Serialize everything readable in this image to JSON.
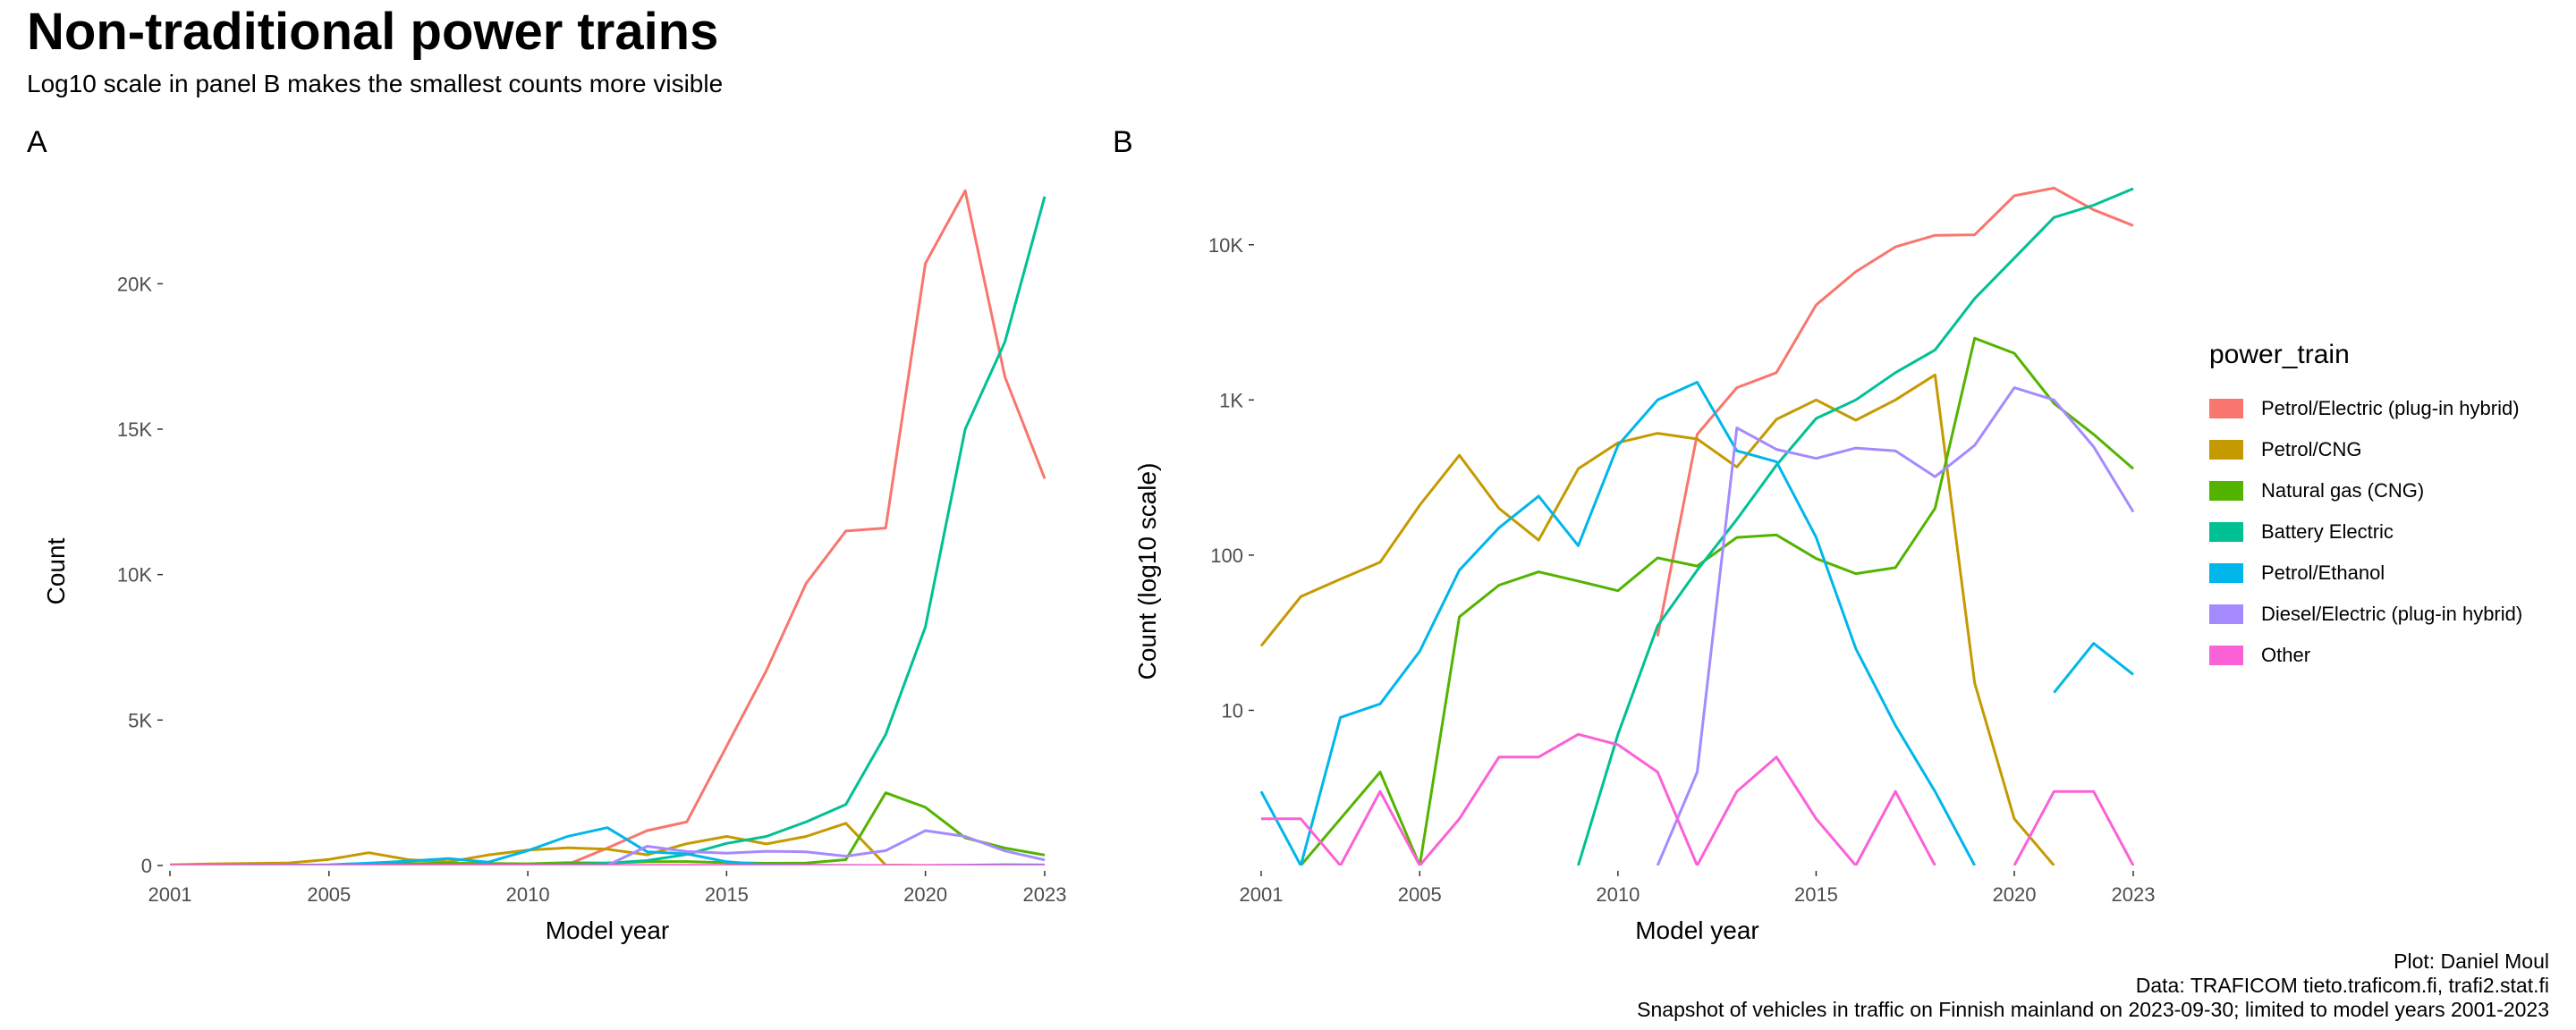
{
  "title": "Non-traditional power trains",
  "subtitle": "Log10 scale in panel B makes the smallest counts more visible",
  "legend": {
    "title": "power_train",
    "items": [
      {
        "label": "Petrol/Electric (plug-in hybrid)",
        "color": "#F8766D"
      },
      {
        "label": "Petrol/CNG",
        "color": "#C49A00"
      },
      {
        "label": "Natural gas (CNG)",
        "color": "#53B400"
      },
      {
        "label": "Battery Electric",
        "color": "#00C094"
      },
      {
        "label": "Petrol/Ethanol",
        "color": "#00B6EB"
      },
      {
        "label": "Diesel/Electric (plug-in hybrid)",
        "color": "#A58AFF"
      },
      {
        "label": "Other",
        "color": "#FB61D7"
      }
    ]
  },
  "caption": {
    "line1": "Plot: Daniel Moul",
    "line2": "Data: TRAFICOM tieto.traficom.fi, trafi2.stat.fi",
    "line3": "Snapshot of vehicles in traffic on Finnish mainland on 2023-09-30; limited to model years 2001-2023"
  },
  "chart_data": [
    {
      "panel": "A",
      "type": "line",
      "xlabel": "Model year",
      "ylabel": "Count",
      "xlim": [
        2001,
        2023
      ],
      "ylim": [
        0,
        23300
      ],
      "x_ticks": [
        2001,
        2005,
        2010,
        2015,
        2020,
        2023
      ],
      "y_ticks": [
        0,
        5000,
        10000,
        15000,
        20000
      ],
      "y_tick_labels": [
        "0",
        "5K",
        "10K",
        "15K",
        "20K"
      ],
      "scale": "linear",
      "grid": false,
      "legend_position": "right"
    },
    {
      "panel": "B",
      "type": "line",
      "xlabel": "Model year",
      "ylabel": "Count (log10 scale)",
      "xlim": [
        2001,
        2023
      ],
      "ylim": [
        1,
        23300
      ],
      "x_ticks": [
        2001,
        2005,
        2010,
        2015,
        2020,
        2023
      ],
      "y_ticks": [
        10,
        100,
        1000,
        10000
      ],
      "y_tick_labels": [
        "10",
        "100",
        "1K",
        "10K"
      ],
      "scale": "log10",
      "grid": false,
      "legend_position": "right"
    }
  ],
  "series": {
    "x": [
      2001,
      2002,
      2003,
      2004,
      2005,
      2006,
      2007,
      2008,
      2009,
      2010,
      2011,
      2012,
      2013,
      2014,
      2015,
      2016,
      2017,
      2018,
      2019,
      2020,
      2021,
      2022,
      2023
    ],
    "lines": [
      {
        "color": "#F8766D",
        "values": [
          0,
          0,
          0,
          0,
          0,
          0,
          0,
          0,
          0,
          0,
          30,
          600,
          1200,
          1500,
          4100,
          6700,
          9700,
          11500,
          11600,
          20700,
          23200,
          16800,
          13300
        ]
      },
      {
        "color": "#C49A00",
        "values": [
          26,
          54,
          70,
          90,
          210,
          440,
          200,
          125,
          360,
          530,
          610,
          560,
          370,
          750,
          1000,
          740,
          1000,
          1450,
          15,
          2,
          1,
          0,
          0
        ]
      },
      {
        "color": "#53B400",
        "values": [
          0,
          1,
          2,
          4,
          1,
          40,
          64,
          78,
          68,
          59,
          96,
          85,
          130,
          135,
          95,
          76,
          83,
          200,
          2500,
          2000,
          950,
          600,
          360
        ]
      },
      {
        "color": "#00C094",
        "values": [
          0,
          0,
          0,
          0,
          0,
          0,
          0,
          0,
          1,
          7,
          35,
          80,
          170,
          380,
          760,
          1000,
          1500,
          2100,
          4500,
          8200,
          15000,
          18000,
          23000
        ]
      },
      {
        "color": "#00B6EB",
        "values": [
          3,
          1,
          9,
          11,
          24,
          80,
          150,
          240,
          115,
          510,
          1000,
          1300,
          470,
          400,
          130,
          25,
          8,
          3,
          1,
          0,
          13,
          27,
          17
        ]
      },
      {
        "color": "#A58AFF",
        "values": [
          0,
          0,
          0,
          0,
          0,
          0,
          0,
          0,
          0,
          0,
          1,
          4,
          660,
          480,
          420,
          490,
          470,
          320,
          510,
          1200,
          1000,
          500,
          190
        ]
      },
      {
        "color": "#FB61D7",
        "values": [
          2,
          2,
          1,
          3,
          1,
          2,
          5,
          5,
          7,
          6,
          4,
          1,
          3,
          5,
          2,
          1,
          3,
          1,
          0,
          1,
          3,
          3,
          1
        ]
      }
    ]
  }
}
